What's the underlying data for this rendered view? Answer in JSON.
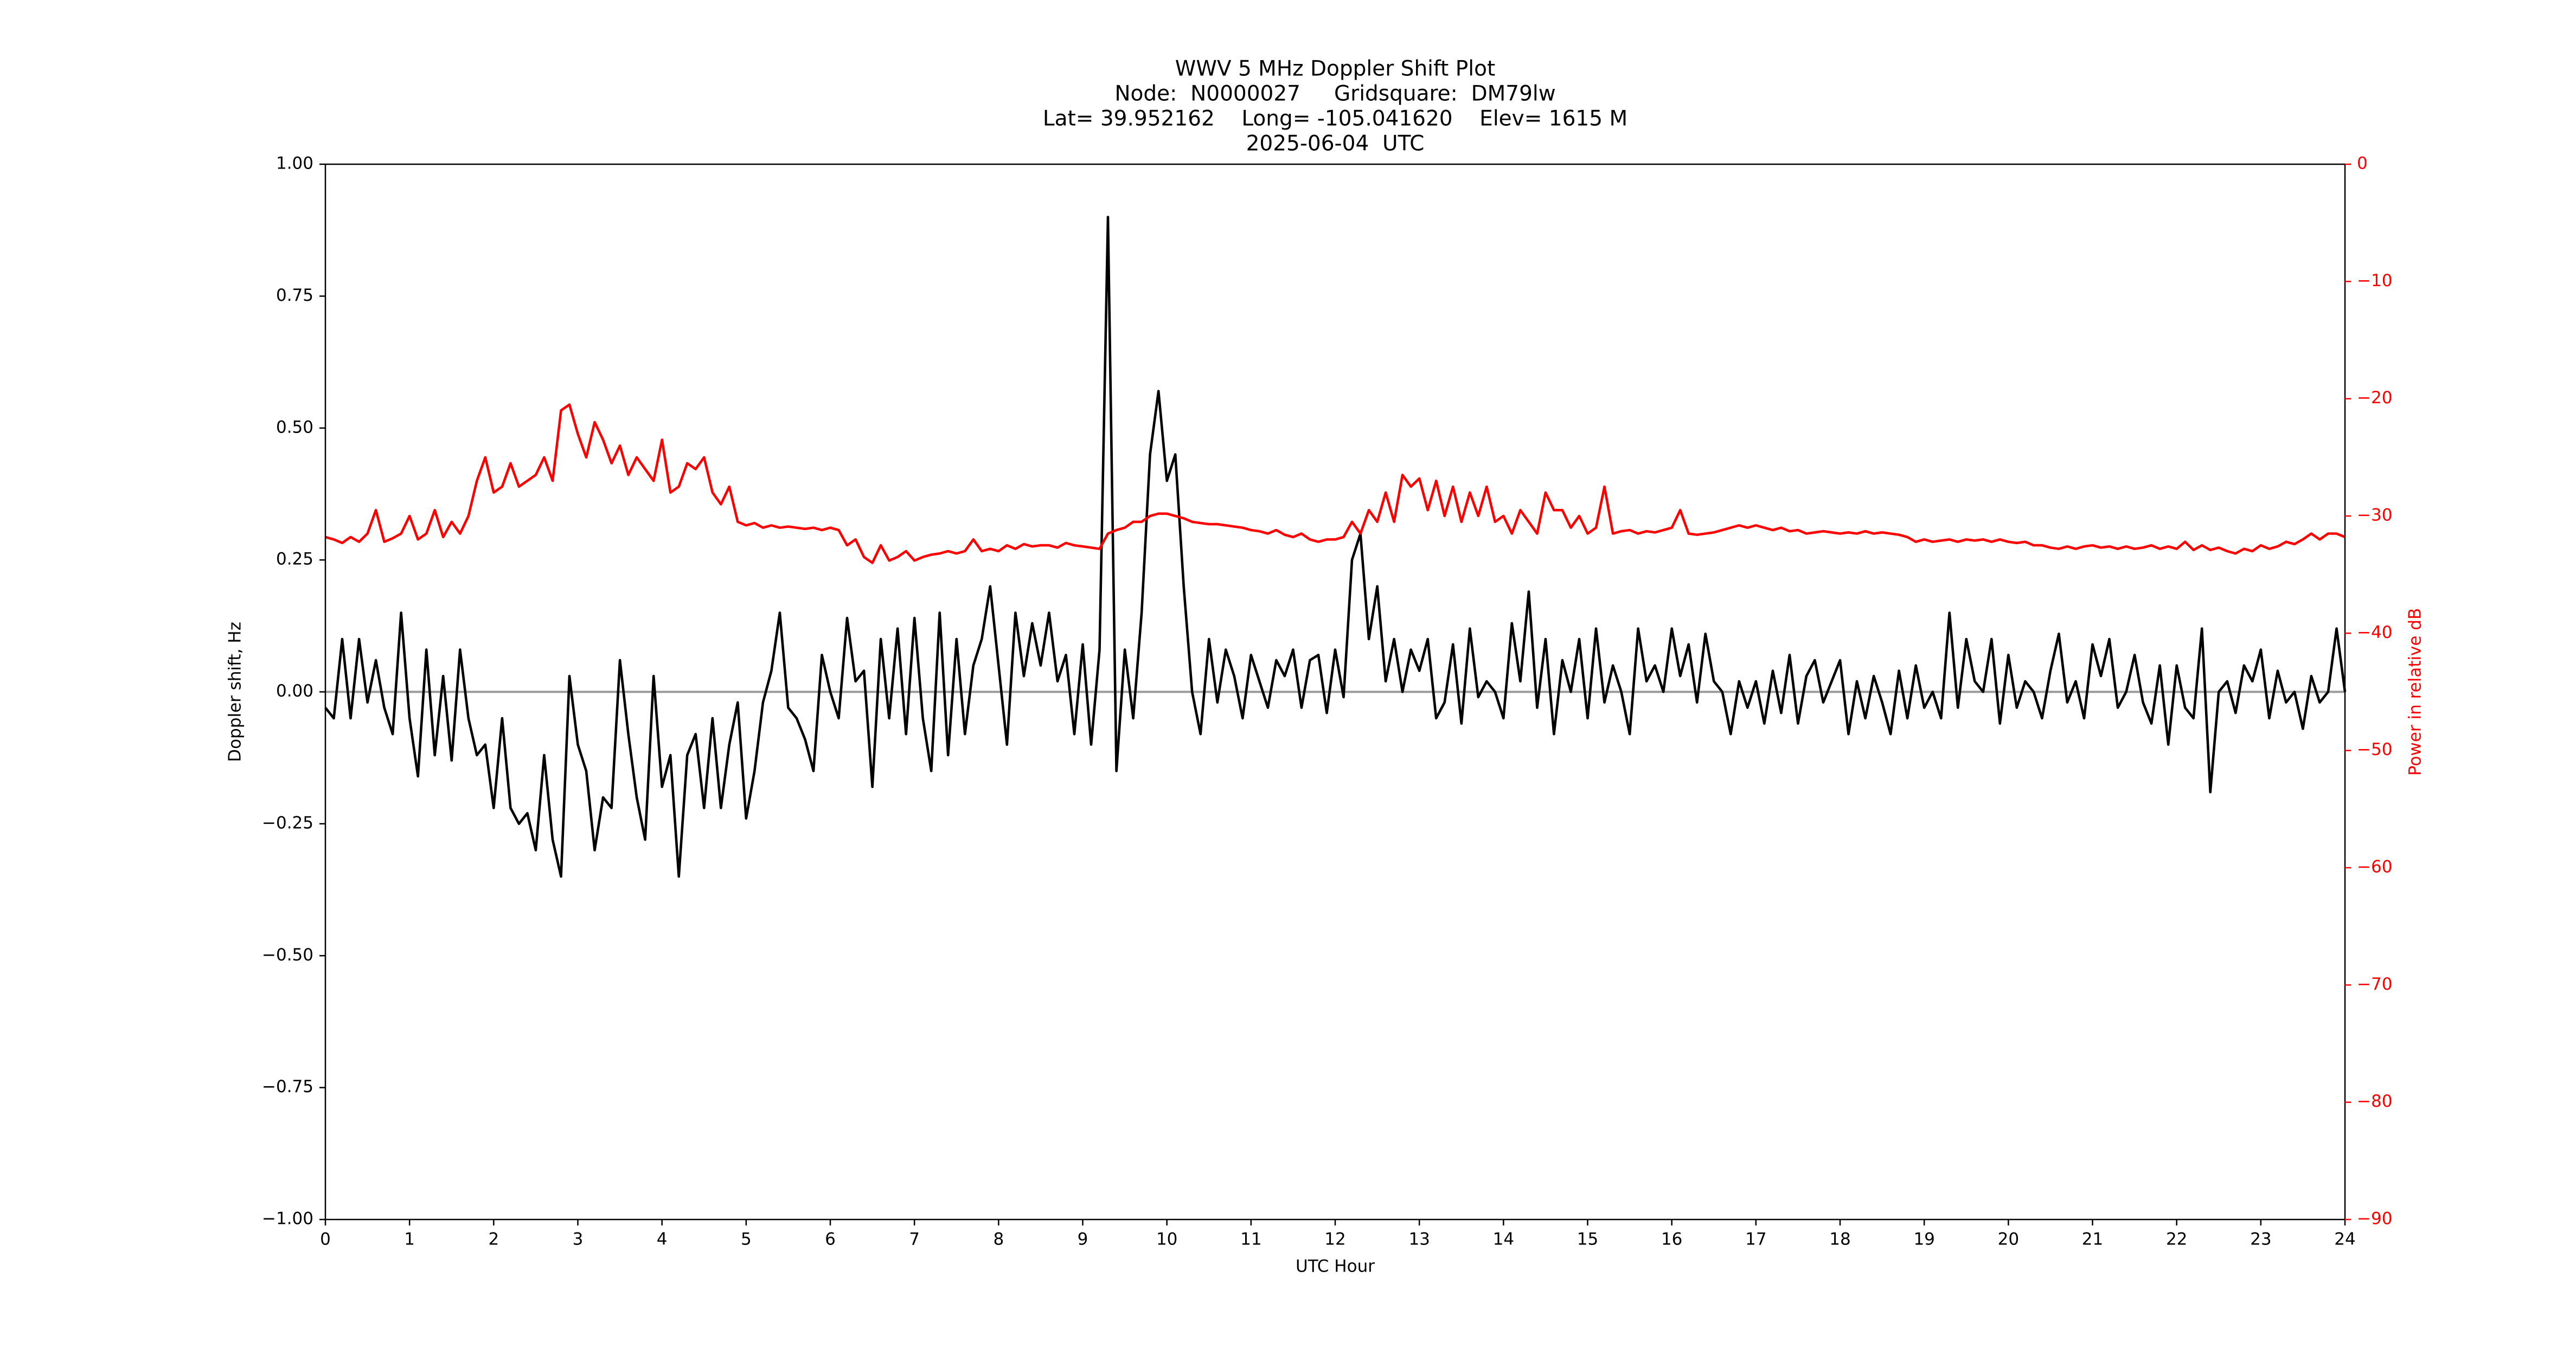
{
  "chart_data": {
    "type": "line",
    "title": [
      "WWV 5 MHz Doppler Shift Plot",
      "Node:  N0000027     Gridsquare:  DM79lw",
      "Lat= 39.952162    Long= -105.041620    Elev= 1615 M",
      "2025-06-04  UTC"
    ],
    "xlabel": "UTC Hour",
    "ylabel": "Doppler shift, Hz",
    "y2label": "Power in relative dB",
    "xlim": [
      0,
      24
    ],
    "xticks": [
      0,
      1,
      2,
      3,
      4,
      5,
      6,
      7,
      8,
      9,
      10,
      11,
      12,
      13,
      14,
      15,
      16,
      17,
      18,
      19,
      20,
      21,
      22,
      23,
      24
    ],
    "ylim": [
      -1,
      1
    ],
    "yticks": [
      {
        "value": 1,
        "label": "1.00"
      },
      0.75,
      {
        "value": 0.5,
        "label": "0.50"
      },
      0.25,
      {
        "value": 0,
        "label": "0.00"
      },
      {
        "value": -0.25,
        "label": "−0.25"
      },
      {
        "value": -0.5,
        "label": "−0.50"
      },
      {
        "value": -0.75,
        "label": "−0.75"
      },
      {
        "value": -1,
        "label": "−1.00"
      }
    ],
    "y2lim": [
      -90,
      0
    ],
    "y2ticks": [
      0,
      {
        "value": -10,
        "label": "−10"
      },
      {
        "value": -20,
        "label": "−20"
      },
      {
        "value": -30,
        "label": "−30"
      },
      {
        "value": -40,
        "label": "−40"
      },
      {
        "value": -50,
        "label": "−50"
      },
      {
        "value": -60,
        "label": "−60"
      },
      {
        "value": -70,
        "label": "−70"
      },
      {
        "value": -80,
        "label": "−80"
      },
      {
        "value": -90,
        "label": "−90"
      }
    ],
    "hline": {
      "y": 0,
      "color": "#999999"
    },
    "x": [
      0,
      0.1,
      0.2,
      0.3,
      0.4,
      0.5,
      0.6,
      0.7,
      0.8,
      0.9,
      1,
      1.1,
      1.2,
      1.3,
      1.4,
      1.5,
      1.6,
      1.7,
      1.8,
      1.9,
      2,
      2.1,
      2.2,
      2.3,
      2.4,
      2.5,
      2.6,
      2.7,
      2.8,
      2.9,
      3,
      3.1,
      3.2,
      3.3,
      3.4,
      3.5,
      3.6,
      3.7,
      3.8,
      3.9,
      4,
      4.1,
      4.2,
      4.3,
      4.4,
      4.5,
      4.6,
      4.7,
      4.8,
      4.9,
      5,
      5.1,
      5.2,
      5.3,
      5.4,
      5.5,
      5.6,
      5.7,
      5.8,
      5.9,
      6,
      6.1,
      6.2,
      6.3,
      6.4,
      6.5,
      6.6,
      6.7,
      6.8,
      6.9,
      7,
      7.1,
      7.2,
      7.3,
      7.4,
      7.5,
      7.6,
      7.7,
      7.8,
      7.9,
      8,
      8.1,
      8.2,
      8.3,
      8.4,
      8.5,
      8.6,
      8.7,
      8.8,
      8.9,
      9,
      9.1,
      9.2,
      9.3,
      9.4,
      9.5,
      9.6,
      9.7,
      9.8,
      9.9,
      10,
      10.1,
      10.2,
      10.3,
      10.4,
      10.5,
      10.6,
      10.7,
      10.8,
      10.9,
      11,
      11.1,
      11.2,
      11.3,
      11.4,
      11.5,
      11.6,
      11.7,
      11.8,
      11.9,
      12,
      12.1,
      12.2,
      12.3,
      12.4,
      12.5,
      12.6,
      12.7,
      12.8,
      12.9,
      13,
      13.1,
      13.2,
      13.3,
      13.4,
      13.5,
      13.6,
      13.7,
      13.8,
      13.9,
      14,
      14.1,
      14.2,
      14.3,
      14.4,
      14.5,
      14.6,
      14.7,
      14.8,
      14.9,
      15,
      15.1,
      15.2,
      15.3,
      15.4,
      15.5,
      15.6,
      15.7,
      15.8,
      15.9,
      16,
      16.1,
      16.2,
      16.3,
      16.4,
      16.5,
      16.6,
      16.7,
      16.8,
      16.9,
      17,
      17.1,
      17.2,
      17.3,
      17.4,
      17.5,
      17.6,
      17.7,
      17.8,
      17.9,
      18,
      18.1,
      18.2,
      18.3,
      18.4,
      18.5,
      18.6,
      18.7,
      18.8,
      18.9,
      19,
      19.1,
      19.2,
      19.3,
      19.4,
      19.5,
      19.6,
      19.7,
      19.8,
      19.9,
      20,
      20.1,
      20.2,
      20.3,
      20.4,
      20.5,
      20.6,
      20.7,
      20.8,
      20.9,
      21,
      21.1,
      21.2,
      21.3,
      21.4,
      21.5,
      21.6,
      21.7,
      21.8,
      21.9,
      22,
      22.1,
      22.2,
      22.3,
      22.4,
      22.5,
      22.6,
      22.7,
      22.8,
      22.9,
      23,
      23.1,
      23.2,
      23.3,
      23.4,
      23.5,
      23.6,
      23.7,
      23.8,
      23.9,
      24
    ],
    "series": [
      {
        "color": "#000000",
        "values": [
          -0.03,
          -0.05,
          0.1,
          -0.05,
          0.1,
          -0.02,
          0.06,
          -0.03,
          -0.08,
          0.15,
          -0.05,
          -0.16,
          0.08,
          -0.12,
          0.03,
          -0.13,
          0.08,
          -0.05,
          -0.12,
          -0.1,
          -0.22,
          -0.05,
          -0.22,
          -0.25,
          -0.23,
          -0.3,
          -0.12,
          -0.28,
          -0.35,
          0.03,
          -0.1,
          -0.15,
          -0.3,
          -0.2,
          -0.22,
          0.06,
          -0.08,
          -0.2,
          -0.28,
          0.03,
          -0.18,
          -0.12,
          -0.35,
          -0.12,
          -0.08,
          -0.22,
          -0.05,
          -0.22,
          -0.1,
          -0.02,
          -0.24,
          -0.15,
          -0.02,
          0.04,
          0.15,
          -0.03,
          -0.05,
          -0.09,
          -0.15,
          0.07,
          0.0,
          -0.05,
          0.14,
          0.02,
          0.04,
          -0.18,
          0.1,
          -0.05,
          0.12,
          -0.08,
          0.14,
          -0.05,
          -0.15,
          0.15,
          -0.12,
          0.1,
          -0.08,
          0.05,
          0.1,
          0.2,
          0.05,
          -0.1,
          0.15,
          0.03,
          0.13,
          0.05,
          0.15,
          0.02,
          0.07,
          -0.08,
          0.09,
          -0.1,
          0.08,
          0.9,
          -0.15,
          0.08,
          -0.05,
          0.15,
          0.45,
          0.57,
          0.4,
          0.45,
          0.2,
          0.0,
          -0.08,
          0.1,
          -0.02,
          0.08,
          0.03,
          -0.05,
          0.07,
          0.02,
          -0.03,
          0.06,
          0.03,
          0.08,
          -0.03,
          0.06,
          0.07,
          -0.04,
          0.08,
          -0.01,
          0.25,
          0.3,
          0.1,
          0.2,
          0.02,
          0.1,
          0.0,
          0.08,
          0.04,
          0.1,
          -0.05,
          -0.02,
          0.09,
          -0.06,
          0.12,
          -0.01,
          0.02,
          0.0,
          -0.05,
          0.13,
          0.02,
          0.19,
          -0.03,
          0.1,
          -0.08,
          0.06,
          0.0,
          0.1,
          -0.05,
          0.12,
          -0.02,
          0.05,
          0.0,
          -0.08,
          0.12,
          0.02,
          0.05,
          0.0,
          0.12,
          0.03,
          0.09,
          -0.02,
          0.11,
          0.02,
          0.0,
          -0.08,
          0.02,
          -0.03,
          0.02,
          -0.06,
          0.04,
          -0.04,
          0.07,
          -0.06,
          0.03,
          0.06,
          -0.02,
          0.02,
          0.06,
          -0.08,
          0.02,
          -0.05,
          0.03,
          -0.02,
          -0.08,
          0.04,
          -0.05,
          0.05,
          -0.03,
          0.0,
          -0.05,
          0.15,
          -0.03,
          0.1,
          0.02,
          0.0,
          0.1,
          -0.06,
          0.07,
          -0.03,
          0.02,
          0.0,
          -0.05,
          0.04,
          0.11,
          -0.02,
          0.02,
          -0.05,
          0.09,
          0.03,
          0.1,
          -0.03,
          0.0,
          0.07,
          -0.02,
          -0.06,
          0.05,
          -0.1,
          0.05,
          -0.03,
          -0.05,
          0.12,
          -0.19,
          0.0,
          0.02,
          -0.04,
          0.05,
          0.02,
          0.08,
          -0.05,
          0.04,
          -0.02,
          0.0,
          -0.07,
          0.03,
          -0.02,
          0.0,
          0.12,
          0.0
        ]
      },
      {
        "color": "#ff0000",
        "axis": "y2",
        "values": [
          -31.8,
          -32,
          -32.3,
          -31.8,
          -32.2,
          -31.5,
          -29.5,
          -32.2,
          -31.9,
          -31.5,
          -30,
          -32,
          -31.5,
          -29.5,
          -31.8,
          -30.5,
          -31.5,
          -30,
          -27,
          -25,
          -28,
          -27.5,
          -25.5,
          -27.5,
          -27,
          -26.5,
          -25,
          -27,
          -21,
          -20.5,
          -23,
          -25,
          -22,
          -23.5,
          -25.5,
          -24,
          -26.5,
          -25,
          -26,
          -27,
          -23.5,
          -28,
          -27.5,
          -25.5,
          -26,
          -25,
          -28,
          -29,
          -27.5,
          -30.5,
          -30.8,
          -30.6,
          -31,
          -30.8,
          -31,
          -30.9,
          -31,
          -31.1,
          -31,
          -31.2,
          -31,
          -31.2,
          -32.5,
          -32,
          -33.5,
          -34,
          -32.5,
          -33.8,
          -33.5,
          -33,
          -33.8,
          -33.5,
          -33.3,
          -33.2,
          -33,
          -33.2,
          -33,
          -32,
          -33,
          -32.8,
          -33,
          -32.5,
          -32.8,
          -32.4,
          -32.6,
          -32.5,
          -32.5,
          -32.7,
          -32.3,
          -32.5,
          -32.6,
          -32.7,
          -32.8,
          -31.5,
          -31.2,
          -31,
          -30.5,
          -30.5,
          -30,
          -29.8,
          -29.8,
          -30,
          -30.2,
          -30.5,
          -30.6,
          -30.7,
          -30.7,
          -30.8,
          -30.9,
          -31,
          -31.2,
          -31.3,
          -31.5,
          -31.2,
          -31.6,
          -31.8,
          -31.5,
          -32,
          -32.2,
          -32,
          -32,
          -31.8,
          -30.5,
          -31.5,
          -29.5,
          -30.5,
          -28,
          -30.5,
          -26.5,
          -27.5,
          -26.8,
          -29.5,
          -27,
          -30,
          -27.5,
          -30.5,
          -28,
          -30,
          -27.5,
          -30.5,
          -30,
          -31.5,
          -29.5,
          -30.5,
          -31.5,
          -28,
          -29.5,
          -29.5,
          -31,
          -30,
          -31.5,
          -31,
          -27.5,
          -31.5,
          -31.3,
          -31.2,
          -31.5,
          -31.3,
          -31.4,
          -31.2,
          -31,
          -29.5,
          -31.5,
          -31.6,
          -31.5,
          -31.4,
          -31.2,
          -31,
          -30.8,
          -31,
          -30.8,
          -31,
          -31.2,
          -31,
          -31.3,
          -31.2,
          -31.5,
          -31.4,
          -31.3,
          -31.4,
          -31.5,
          -31.4,
          -31.5,
          -31.3,
          -31.5,
          -31.4,
          -31.5,
          -31.6,
          -31.8,
          -32.2,
          -32,
          -32.2,
          -32.1,
          -32,
          -32.2,
          -32,
          -32.1,
          -32,
          -32.2,
          -32,
          -32.2,
          -32.3,
          -32.2,
          -32.5,
          -32.5,
          -32.7,
          -32.8,
          -32.6,
          -32.8,
          -32.6,
          -32.5,
          -32.7,
          -32.6,
          -32.8,
          -32.6,
          -32.8,
          -32.7,
          -32.5,
          -32.8,
          -32.6,
          -32.8,
          -32.2,
          -32.9,
          -32.5,
          -32.9,
          -32.7,
          -33,
          -33.2,
          -32.8,
          -33,
          -32.5,
          -32.8,
          -32.6,
          -32.2,
          -32.4,
          -32,
          -31.5,
          -32,
          -31.5,
          -31.5,
          -31.8
        ]
      }
    ]
  }
}
